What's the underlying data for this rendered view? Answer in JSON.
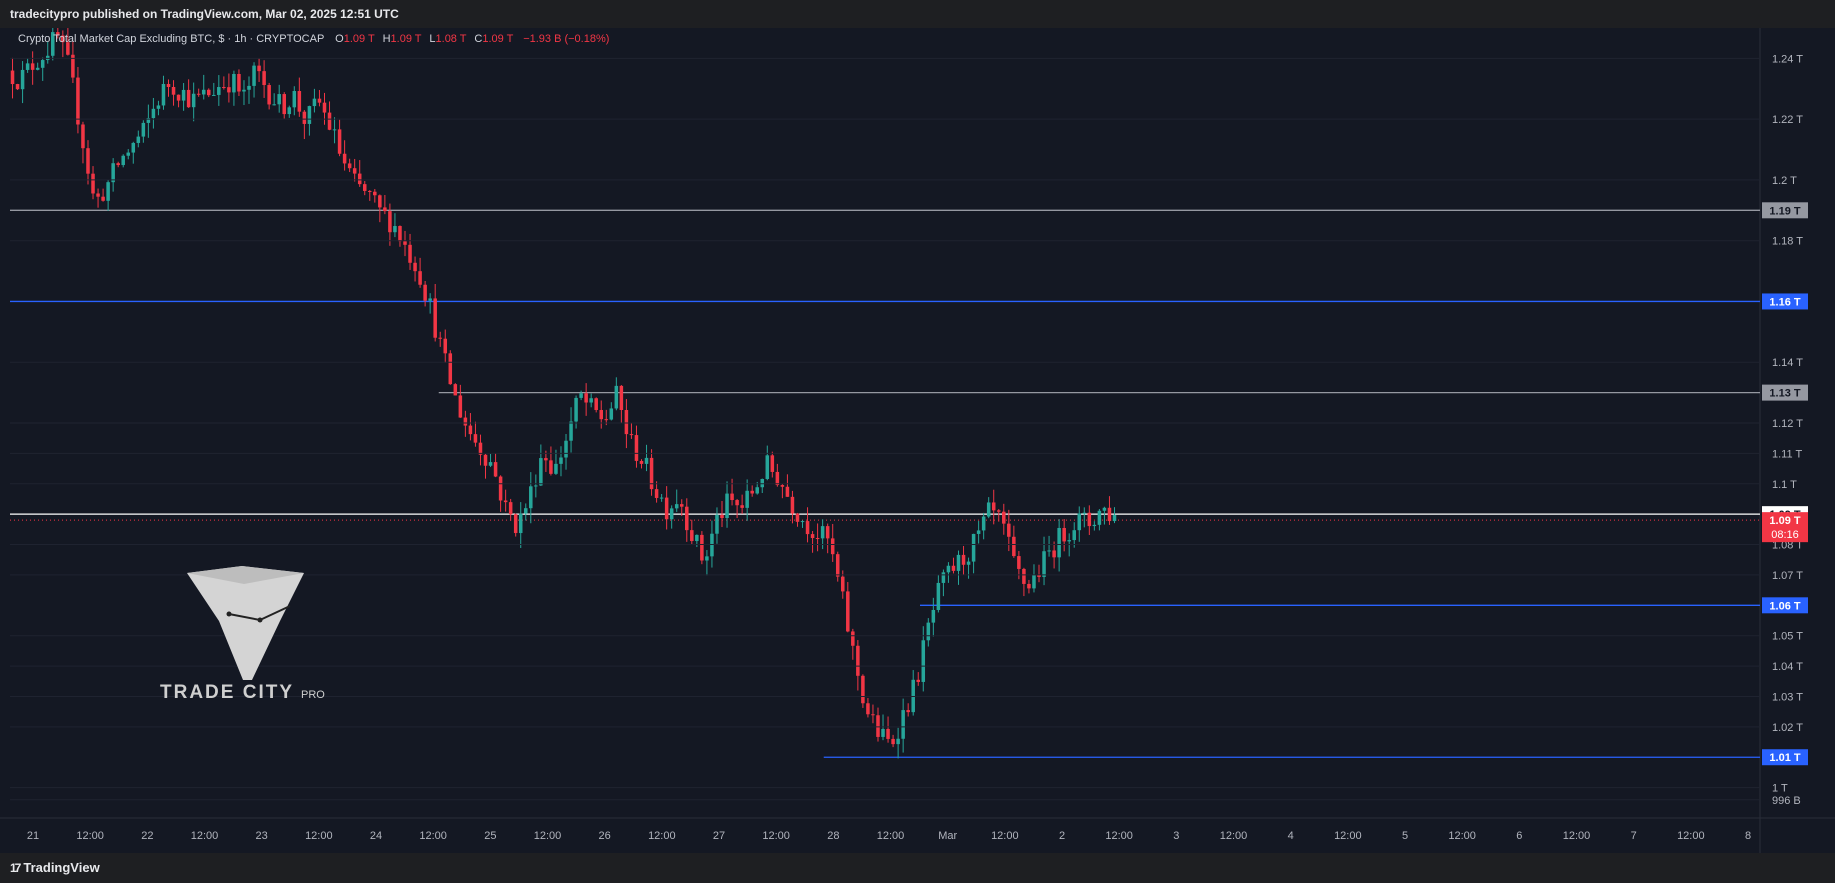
{
  "header": {
    "published_by": "tradecitypro published on TradingView.com, Mar 02, 2025 12:51 UTC"
  },
  "footer": {
    "brand": "TradingView",
    "brand_icon": "tradingview-logo-icon"
  },
  "legend": {
    "symbol": "Crypto Total Market Cap Excluding BTC, $ · 1h · CRYPTOCAP",
    "o_label": "O",
    "o_value": "1.09 T",
    "h_label": "H",
    "h_value": "1.09 T",
    "l_label": "L",
    "l_value": "1.08 T",
    "c_label": "C",
    "c_value": "1.09 T",
    "change": "−1.93 B (−0.18%)"
  },
  "watermark": {
    "name": "TRADE CITY",
    "suffix": "PRO"
  },
  "colors": {
    "up": "#26a69a",
    "down": "#f23645",
    "bg": "#141823",
    "grid": "#1f2330"
  },
  "chart_data": {
    "type": "candlestick",
    "title": "Crypto Total Market Cap Excluding BTC",
    "ylim": [
      0.99,
      1.25
    ],
    "y_ticks": [
      {
        "v": 1.24,
        "label": "1.24 T"
      },
      {
        "v": 1.22,
        "label": "1.22 T"
      },
      {
        "v": 1.2,
        "label": "1.2 T"
      },
      {
        "v": 1.18,
        "label": "1.18 T"
      },
      {
        "v": 1.14,
        "label": "1.14 T"
      },
      {
        "v": 1.12,
        "label": "1.12 T"
      },
      {
        "v": 1.11,
        "label": "1.11 T"
      },
      {
        "v": 1.1,
        "label": "1.1 T"
      },
      {
        "v": 1.08,
        "label": "1.08 T"
      },
      {
        "v": 1.07,
        "label": "1.07 T"
      },
      {
        "v": 1.05,
        "label": "1.05 T"
      },
      {
        "v": 1.04,
        "label": "1.04 T"
      },
      {
        "v": 1.03,
        "label": "1.03 T"
      },
      {
        "v": 1.02,
        "label": "1.02 T"
      },
      {
        "v": 1.0,
        "label": "1 T"
      },
      {
        "v": 0.996,
        "label": "996 B"
      }
    ],
    "x_ticks": [
      "21",
      "12:00",
      "22",
      "12:00",
      "23",
      "12:00",
      "24",
      "12:00",
      "25",
      "12:00",
      "26",
      "12:00",
      "27",
      "12:00",
      "28",
      "12:00",
      "Mar",
      "12:00",
      "2",
      "12:00",
      "3",
      "12:00",
      "4",
      "12:00",
      "5",
      "12:00",
      "6",
      "12:00",
      "7",
      "12:00",
      "8"
    ],
    "levels": [
      {
        "value": 1.19,
        "label": "1.19 T",
        "color": "#9598a1",
        "start": 0.0
      },
      {
        "value": 1.16,
        "label": "1.16 T",
        "color": "#2962ff",
        "start": 0.0
      },
      {
        "value": 1.13,
        "label": "1.13 T",
        "color": "#9598a1",
        "start": 0.245
      },
      {
        "value": 1.09,
        "label": "1.09 T",
        "color": "#ffffff",
        "start": 0.0
      },
      {
        "value": 1.06,
        "label": "1.06 T",
        "color": "#2962ff",
        "start": 0.52
      },
      {
        "value": 1.01,
        "label": "1.01 T",
        "color": "#2962ff",
        "start": 0.465
      }
    ],
    "last_price": {
      "value": 1.09,
      "label": "1.09 T",
      "countdown": "08:16",
      "color": "#f23645"
    },
    "path": [
      1.236,
      1.233,
      1.238,
      1.242,
      1.247,
      1.236,
      1.214,
      1.192,
      1.198,
      1.206,
      1.211,
      1.216,
      1.226,
      1.232,
      1.229,
      1.226,
      1.228,
      1.231,
      1.233,
      1.227,
      1.236,
      1.229,
      1.224,
      1.228,
      1.219,
      1.226,
      1.217,
      1.206,
      1.198,
      1.195,
      1.189,
      1.186,
      1.178,
      1.171,
      1.158,
      1.142,
      1.128,
      1.118,
      1.112,
      1.106,
      1.092,
      1.086,
      1.096,
      1.111,
      1.104,
      1.116,
      1.129,
      1.124,
      1.121,
      1.129,
      1.114,
      1.108,
      1.099,
      1.092,
      1.096,
      1.084,
      1.074,
      1.088,
      1.094,
      1.092,
      1.098,
      1.106,
      1.102,
      1.094,
      1.088,
      1.084,
      1.081,
      1.064,
      1.044,
      1.026,
      1.018,
      1.014,
      1.024,
      1.034,
      1.052,
      1.066,
      1.072,
      1.076,
      1.082,
      1.091,
      1.086,
      1.072,
      1.066,
      1.072,
      1.079,
      1.084,
      1.088,
      1.087,
      1.092,
      1.089
    ]
  }
}
